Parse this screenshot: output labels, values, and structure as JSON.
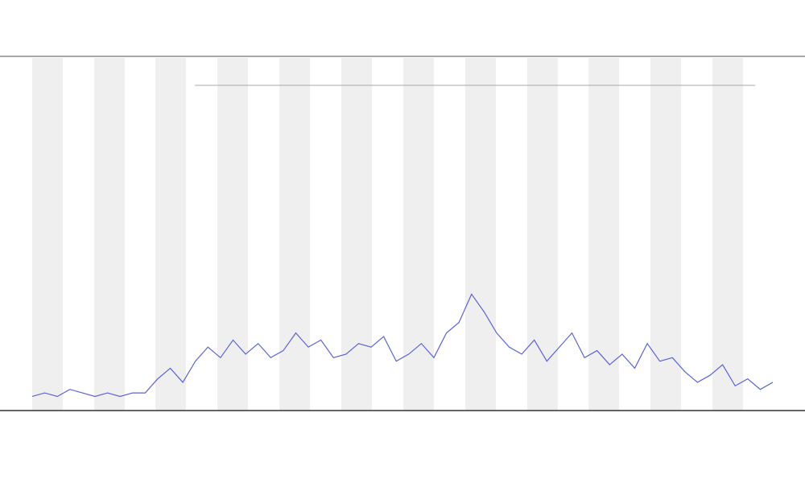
{
  "chart_data": {
    "type": "line",
    "x": [
      0,
      1,
      2,
      3,
      4,
      5,
      6,
      7,
      8,
      9,
      10,
      11,
      12,
      13,
      14,
      15,
      16,
      17,
      18,
      19,
      20,
      21,
      22,
      23,
      24,
      25,
      26,
      27,
      28,
      29,
      30,
      31,
      32,
      33,
      34,
      35,
      36,
      37,
      38,
      39,
      40,
      41,
      42,
      43,
      44,
      45,
      46,
      47,
      48,
      49,
      50,
      51,
      52,
      53,
      54,
      55,
      56,
      57,
      58,
      59
    ],
    "xlim": [
      0,
      59
    ],
    "ylim": [
      0,
      100
    ],
    "series": [
      {
        "color": "#5b63d6",
        "values": [
          4,
          5,
          4,
          6,
          5,
          4,
          5,
          4,
          5,
          5,
          9,
          12,
          8,
          14,
          18,
          15,
          20,
          16,
          19,
          15,
          17,
          22,
          18,
          20,
          15,
          16,
          19,
          18,
          21,
          14,
          16,
          19,
          15,
          22,
          25,
          33,
          28,
          22,
          18,
          16,
          20,
          14,
          18,
          22,
          15,
          17,
          13,
          16,
          12,
          19,
          14,
          15,
          11,
          8,
          10,
          13,
          7,
          9,
          6,
          8
        ]
      }
    ]
  }
}
